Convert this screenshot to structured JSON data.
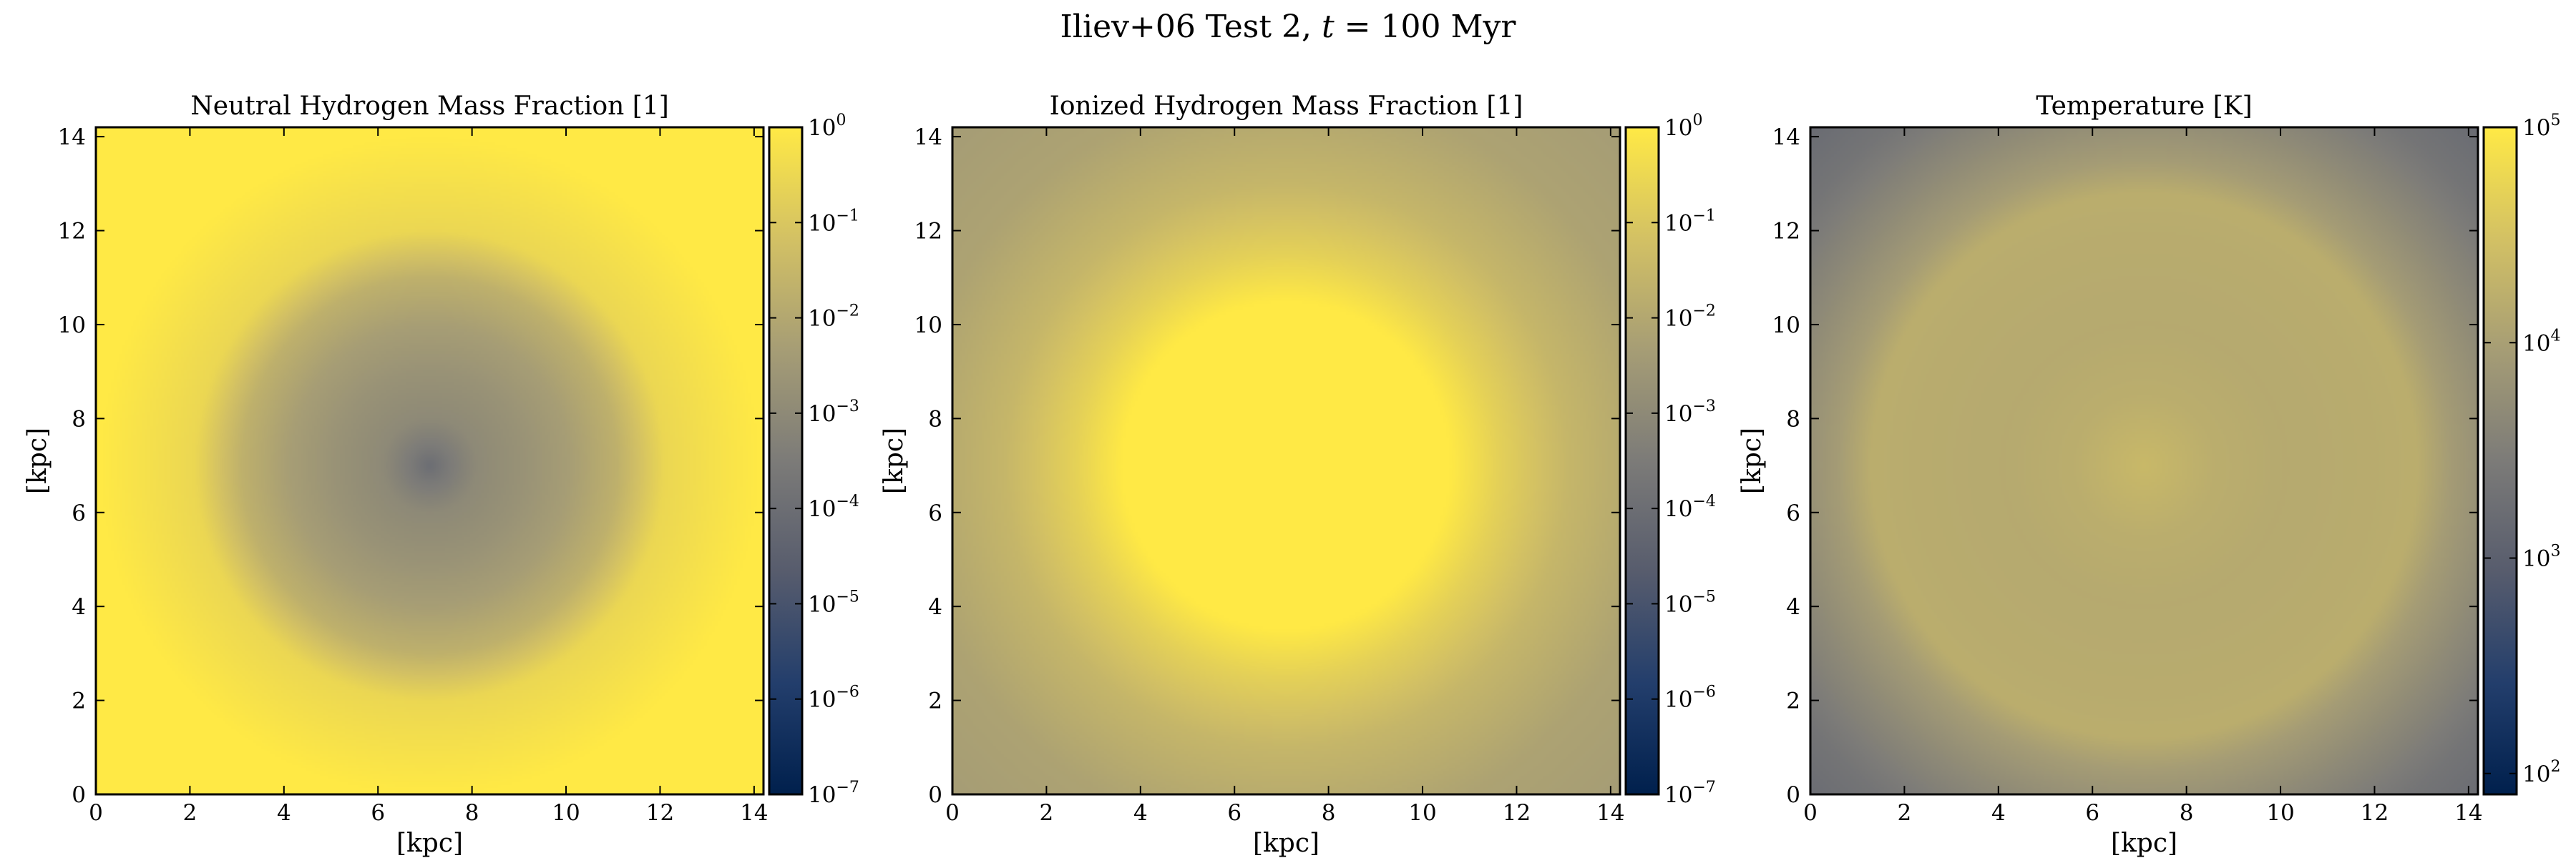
{
  "figure": {
    "suptitle_main": "Iliev+06 Test 2, ",
    "suptitle_var": "t",
    "suptitle_rest": " = 100 Myr"
  },
  "colors": {
    "cmap": [
      "#00204d",
      "#233e6c",
      "#575c6d",
      "#7c7b78",
      "#a69d75",
      "#d3c164",
      "#ffe945"
    ]
  },
  "chart_data": [
    {
      "type": "heatmap",
      "title": "Neutral Hydrogen Mass Fraction [1]",
      "xlabel": "[kpc]",
      "ylabel": "[kpc]",
      "xlim": [
        0,
        14.2
      ],
      "ylim": [
        0,
        14.2
      ],
      "xticks": [
        "0",
        "2",
        "4",
        "6",
        "8",
        "10",
        "12",
        "14"
      ],
      "yticks": [
        "0",
        "2",
        "4",
        "6",
        "8",
        "10",
        "12",
        "14"
      ],
      "colorbar": {
        "scale": "log",
        "range": [
          1e-07,
          1
        ],
        "ticks": [
          {
            "base": "10",
            "exp": "0",
            "value": 1
          },
          {
            "base": "10",
            "exp": "−1",
            "value": 0.1
          },
          {
            "base": "10",
            "exp": "−2",
            "value": 0.01
          },
          {
            "base": "10",
            "exp": "−3",
            "value": 0.001
          },
          {
            "base": "10",
            "exp": "−4",
            "value": 0.0001
          },
          {
            "base": "10",
            "exp": "−5",
            "value": 1e-05
          },
          {
            "base": "10",
            "exp": "−6",
            "value": 1e-06
          },
          {
            "base": "10",
            "exp": "−7",
            "value": 1e-07
          }
        ]
      },
      "source_center": [
        7.1,
        7.0
      ],
      "radial_profile": {
        "r_kpc": [
          0,
          0.4,
          1,
          2,
          3,
          4,
          5,
          7,
          10.5
        ],
        "value": [
          0.0001,
          0.0003,
          0.001,
          0.002,
          0.005,
          0.02,
          0.3,
          1,
          1
        ]
      }
    },
    {
      "type": "heatmap",
      "title": "Ionized Hydrogen Mass Fraction [1]",
      "xlabel": "[kpc]",
      "ylabel": "[kpc]",
      "xlim": [
        0,
        14.2
      ],
      "ylim": [
        0,
        14.2
      ],
      "xticks": [
        "0",
        "2",
        "4",
        "6",
        "8",
        "10",
        "12",
        "14"
      ],
      "yticks": [
        "0",
        "2",
        "4",
        "6",
        "8",
        "10",
        "12",
        "14"
      ],
      "colorbar": {
        "scale": "log",
        "range": [
          1e-07,
          1
        ],
        "ticks": [
          {
            "base": "10",
            "exp": "0",
            "value": 1
          },
          {
            "base": "10",
            "exp": "−1",
            "value": 0.1
          },
          {
            "base": "10",
            "exp": "−2",
            "value": 0.01
          },
          {
            "base": "10",
            "exp": "−3",
            "value": 0.001
          },
          {
            "base": "10",
            "exp": "−4",
            "value": 0.0001
          },
          {
            "base": "10",
            "exp": "−5",
            "value": 1e-05
          },
          {
            "base": "10",
            "exp": "−6",
            "value": 1e-06
          },
          {
            "base": "10",
            "exp": "−7",
            "value": 1e-07
          }
        ]
      },
      "source_center": [
        7.1,
        7.0
      ],
      "radial_profile": {
        "r_kpc": [
          0,
          3.5,
          4.5,
          6,
          8,
          10.5
        ],
        "value": [
          1,
          1,
          0.2,
          0.03,
          0.007,
          0.004
        ]
      }
    },
    {
      "type": "heatmap",
      "title": "Temperature [K]",
      "xlabel": "[kpc]",
      "ylabel": "[kpc]",
      "xlim": [
        0,
        14.2
      ],
      "ylim": [
        0,
        14.2
      ],
      "xticks": [
        "0",
        "2",
        "4",
        "6",
        "8",
        "10",
        "12",
        "14"
      ],
      "yticks": [
        "0",
        "2",
        "4",
        "6",
        "8",
        "10",
        "12",
        "14"
      ],
      "colorbar": {
        "scale": "log",
        "range": [
          80,
          100000
        ],
        "ticks": [
          {
            "base": "10",
            "exp": "5",
            "value": 100000
          },
          {
            "base": "10",
            "exp": "4",
            "value": 10000
          },
          {
            "base": "10",
            "exp": "3",
            "value": 1000
          },
          {
            "base": "10",
            "exp": "2",
            "value": 100
          }
        ]
      },
      "source_center": [
        7.1,
        7.0
      ],
      "radial_profile": {
        "r_kpc": [
          0,
          0.6,
          1.5,
          3,
          5,
          5.8,
          6.5,
          7.5,
          9,
          10.5
        ],
        "value": [
          23000,
          20000,
          16000,
          14000,
          15000,
          16000,
          9000,
          5000,
          2200,
          1400
        ]
      }
    }
  ]
}
